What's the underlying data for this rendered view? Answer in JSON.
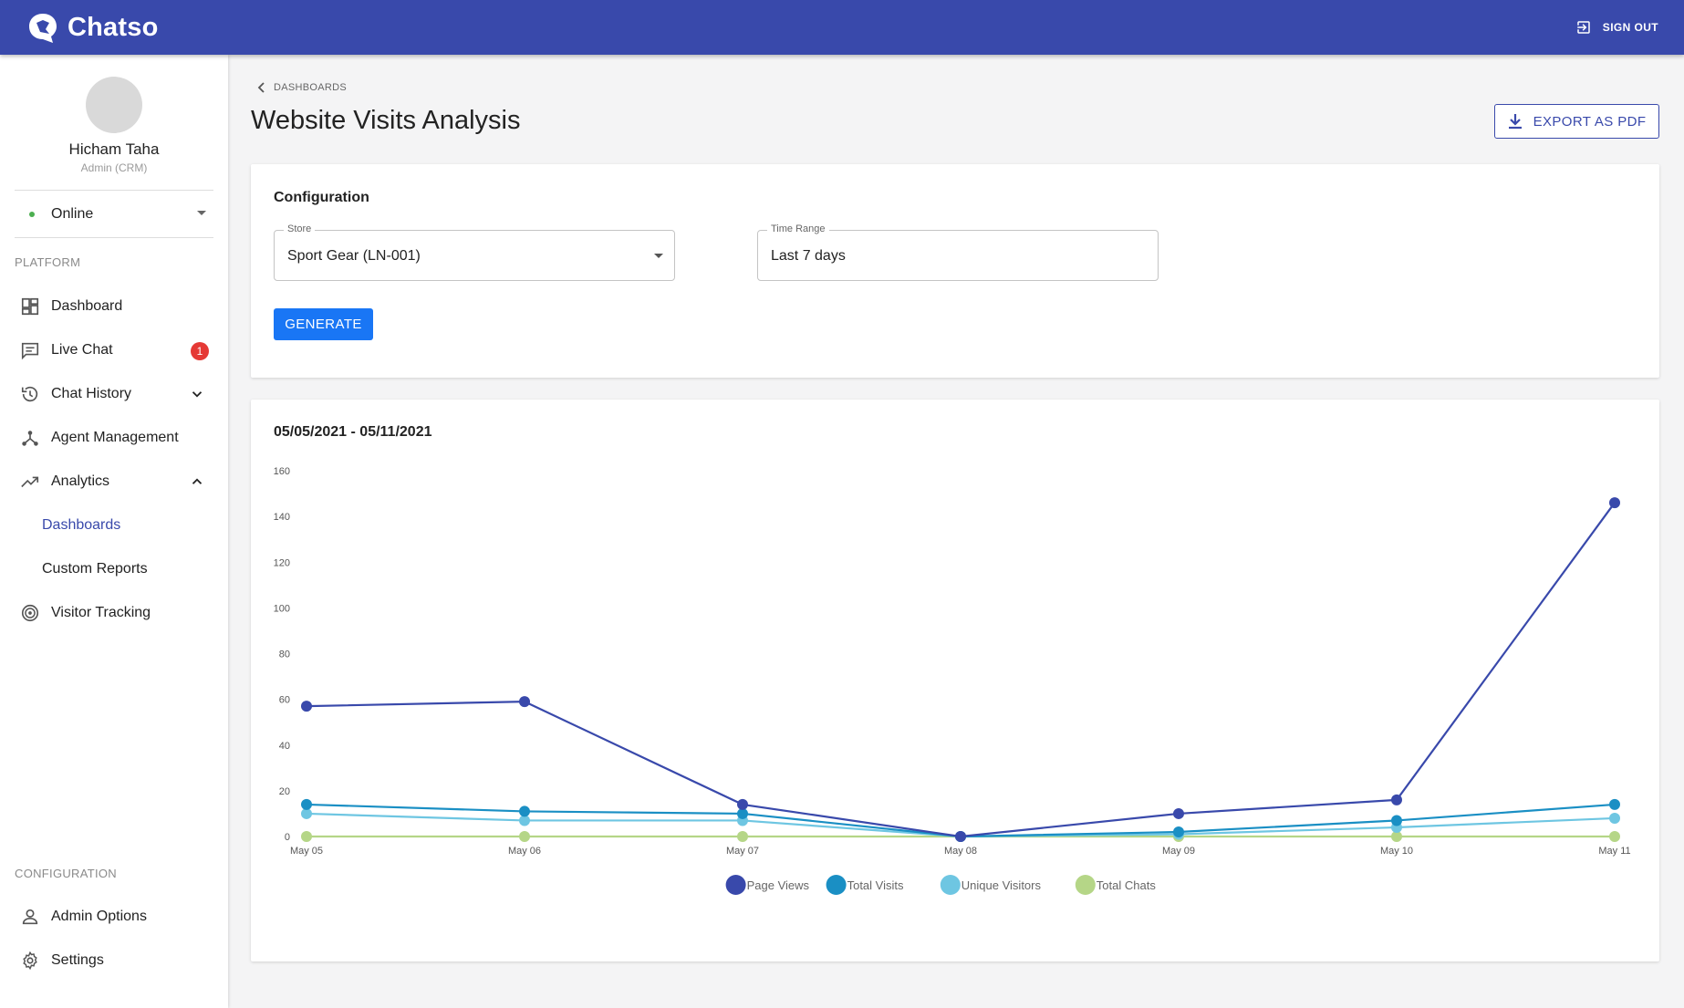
{
  "app": {
    "brand": "Chatso",
    "signout_label": "SIGN OUT"
  },
  "user": {
    "name": "Hicham Taha",
    "role": "Admin (CRM)",
    "status": "Online"
  },
  "sidebar": {
    "platform_label": "PLATFORM",
    "items": [
      {
        "label": "Dashboard",
        "icon": "dashboard-icon"
      },
      {
        "label": "Live Chat",
        "icon": "chat-icon",
        "badge": "1"
      },
      {
        "label": "Chat History",
        "icon": "history-icon"
      },
      {
        "label": "Agent Management",
        "icon": "agents-icon"
      },
      {
        "label": "Analytics",
        "icon": "trending-up-icon"
      },
      {
        "label": "Dashboards"
      },
      {
        "label": "Custom Reports"
      },
      {
        "label": "Visitor Tracking",
        "icon": "radar-icon"
      }
    ],
    "config_label": "CONFIGURATION",
    "config_items": [
      {
        "label": "Admin Options",
        "icon": "person-icon"
      },
      {
        "label": "Settings",
        "icon": "gear-icon"
      }
    ]
  },
  "main": {
    "breadcrumb": "DASHBOARDS",
    "title": "Website Visits Analysis",
    "export_label": "EXPORT AS PDF"
  },
  "config": {
    "title": "Configuration",
    "store_label": "Store",
    "store_value": "Sport Gear (LN-001)",
    "time_label": "Time Range",
    "time_value": "Last 7 days",
    "generate_label": "GENERATE"
  },
  "chart_card": {
    "date_range": "05/05/2021 - 05/11/2021"
  },
  "chart_data": {
    "type": "line",
    "categories": [
      "May 05",
      "May 06",
      "May 07",
      "May 08",
      "May 09",
      "May 10",
      "May 11"
    ],
    "ylim": [
      0,
      160
    ],
    "yticks": [
      0,
      20,
      40,
      60,
      80,
      100,
      120,
      140,
      160
    ],
    "legend_position": "bottom-center",
    "series": [
      {
        "name": "Page Views",
        "color": "#3949ab",
        "values": [
          57,
          59,
          14,
          0,
          10,
          16,
          146
        ]
      },
      {
        "name": "Total Visits",
        "color": "#1a8fc4",
        "values": [
          14,
          11,
          10,
          0,
          2,
          7,
          14
        ]
      },
      {
        "name": "Unique Visitors",
        "color": "#6ec6e2",
        "values": [
          10,
          7,
          7,
          0,
          1,
          4,
          8
        ]
      },
      {
        "name": "Total Chats",
        "color": "#b5d687",
        "values": [
          0,
          0,
          0,
          0,
          0,
          0,
          0
        ]
      }
    ]
  }
}
